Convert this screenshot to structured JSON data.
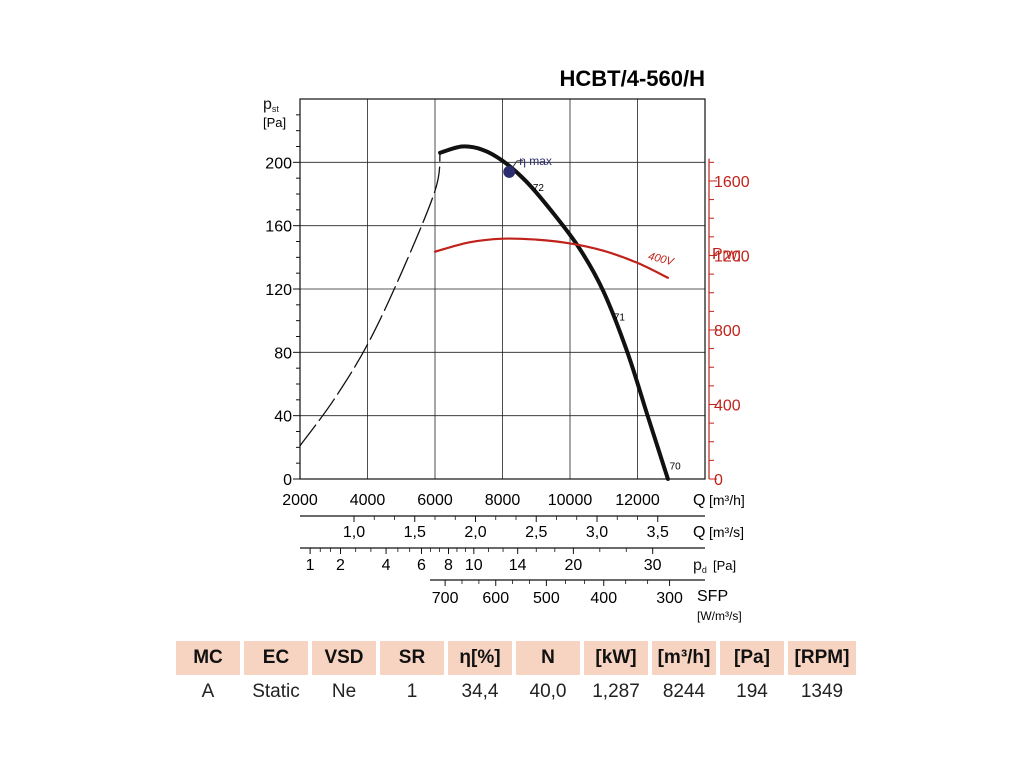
{
  "chart_data": {
    "type": "line",
    "title": "HCBT/4-560/H",
    "y_axis": {
      "label_main": "p",
      "label_sub": "st",
      "unit": "[Pa]",
      "ticks": [
        0,
        40,
        80,
        120,
        160,
        200
      ],
      "ylim": [
        0,
        240
      ]
    },
    "x_axis": {
      "ticks": [
        2000,
        4000,
        6000,
        8000,
        10000,
        12000
      ],
      "unit_label": "Q",
      "unit": "[m³/h]",
      "xlim": [
        2000,
        14000
      ]
    },
    "y2_axis": {
      "label_main": "P",
      "unit": "[W]",
      "ticks": [
        0,
        400,
        800,
        1200,
        1600
      ],
      "ylim": [
        0,
        2040
      ],
      "color": "#c0221b"
    },
    "secondary_scales": [
      {
        "label": "Q",
        "unit": "[m³/s]",
        "ticks": [
          {
            "label": "1,0",
            "q": 3600
          },
          {
            "label": "1,5",
            "q": 5400
          },
          {
            "label": "2,0",
            "q": 7200
          },
          {
            "label": "2,5",
            "q": 9000
          },
          {
            "label": "3,0",
            "q": 10800
          },
          {
            "label": "3,5",
            "q": 12600
          }
        ]
      },
      {
        "label": "p",
        "sub": "d",
        "unit": "[Pa]",
        "ticks": [
          {
            "label": "1",
            "q": 2300
          },
          {
            "label": "2",
            "q": 3200
          },
          {
            "label": "4",
            "q": 4550
          },
          {
            "label": "6",
            "q": 5600
          },
          {
            "label": "8",
            "q": 6400
          },
          {
            "label": "10",
            "q": 7150
          },
          {
            "label": "14",
            "q": 8450
          },
          {
            "label": "20",
            "q": 10100
          },
          {
            "label": "30",
            "q": 12450
          }
        ]
      },
      {
        "label": "SFP",
        "unit": "[W/m³/s]",
        "ticks": [
          {
            "label": "700",
            "q": 6300
          },
          {
            "label": "600",
            "q": 7800
          },
          {
            "label": "500",
            "q": 9300
          },
          {
            "label": "400",
            "q": 11000
          },
          {
            "label": "300",
            "q": 12950
          }
        ]
      }
    ],
    "series": [
      {
        "name": "",
        "color": "#111111",
        "dashed": true,
        "points": [
          [
            2000,
            21
          ],
          [
            3000,
            50
          ],
          [
            4000,
            85
          ],
          [
            5000,
            130
          ],
          [
            6000,
            182
          ],
          [
            6150,
            206
          ]
        ]
      },
      {
        "name": "",
        "color": "#111111",
        "dashed": false,
        "points": [
          [
            6150,
            206
          ],
          [
            6800,
            210
          ],
          [
            7400,
            208
          ],
          [
            8000,
            201
          ],
          [
            8700,
            188
          ],
          [
            9500,
            168
          ],
          [
            10300,
            145
          ],
          [
            11000,
            118
          ],
          [
            11700,
            80
          ],
          [
            12300,
            40
          ],
          [
            12900,
            0
          ]
        ]
      },
      {
        "name": "400V",
        "color": "#c0221b",
        "axis": "y2",
        "points": [
          [
            6000,
            1220
          ],
          [
            7000,
            1270
          ],
          [
            8000,
            1290
          ],
          [
            9000,
            1285
          ],
          [
            10000,
            1265
          ],
          [
            11000,
            1225
          ],
          [
            12000,
            1160
          ],
          [
            12900,
            1080
          ]
        ]
      }
    ],
    "annotations": [
      {
        "text": "η max",
        "x": 8200,
        "y": 194,
        "marker": true
      },
      {
        "text": "72",
        "x": 8900,
        "y": 182
      },
      {
        "text": "71",
        "x": 11300,
        "y": 100
      },
      {
        "text": "70",
        "x": 12950,
        "y": 6
      },
      {
        "text": "400V",
        "x": 12300,
        "y": 1180,
        "axis": "y2"
      }
    ],
    "table": {
      "headers": [
        "MC",
        "EC",
        "VSD",
        "SR",
        "η[%]",
        "N",
        "[kW]",
        "[m³/h]",
        "[Pa]",
        "[RPM]"
      ],
      "values": [
        "A",
        "Static",
        "Ne",
        "1",
        "34,4",
        "40,0",
        "1,287",
        "8244",
        "194",
        "1349"
      ]
    }
  }
}
